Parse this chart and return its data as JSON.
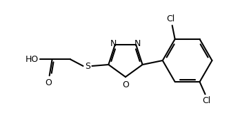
{
  "background": "#ffffff",
  "line_color": "#000000",
  "line_width": 1.5,
  "font_size": 9,
  "figsize": [
    3.48,
    1.76
  ],
  "dpi": 100,
  "xlim": [
    0.0,
    3.48
  ],
  "ylim": [
    0.05,
    1.71
  ]
}
